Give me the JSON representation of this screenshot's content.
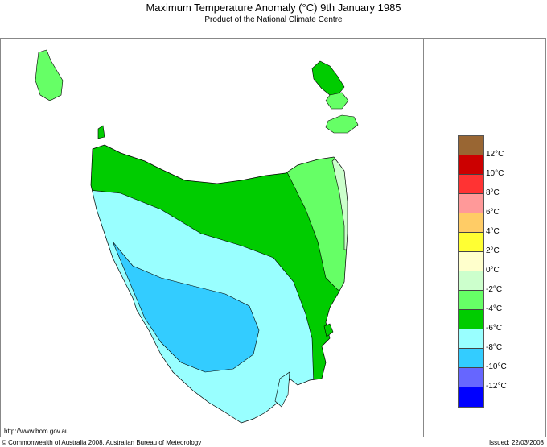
{
  "title": "Maximum Temperature Anomaly (°C)  9th January 1985",
  "subtitle": "Product of the National Climate Centre",
  "url": "http://www.bom.gov.au",
  "copyright": "© Commonwealth of Australia 2008, Australian Bureau of Meteorology",
  "issued": "Issued: 22/03/2008",
  "legend": {
    "colors": [
      "#996633",
      "#cc0000",
      "#ff3333",
      "#ff9999",
      "#ffcc66",
      "#ffff33",
      "#ffffcc",
      "#ccffcc",
      "#66ff66",
      "#00cc00",
      "#99ffff",
      "#33ccff",
      "#6666ff",
      "#0000ff"
    ],
    "labels": [
      "12°C",
      "10°C",
      "8°C",
      "6°C",
      "4°C",
      "2°C",
      "0°C",
      "-2°C",
      "-4°C",
      "-6°C",
      "-8°C",
      "-10°C",
      "-12°C"
    ]
  },
  "map_regions": {
    "north_west": "#00cc00",
    "north_east": "#66ff66",
    "east_coast": "#ccffcc",
    "south": "#99ffff",
    "south_west": "#33ccff"
  }
}
